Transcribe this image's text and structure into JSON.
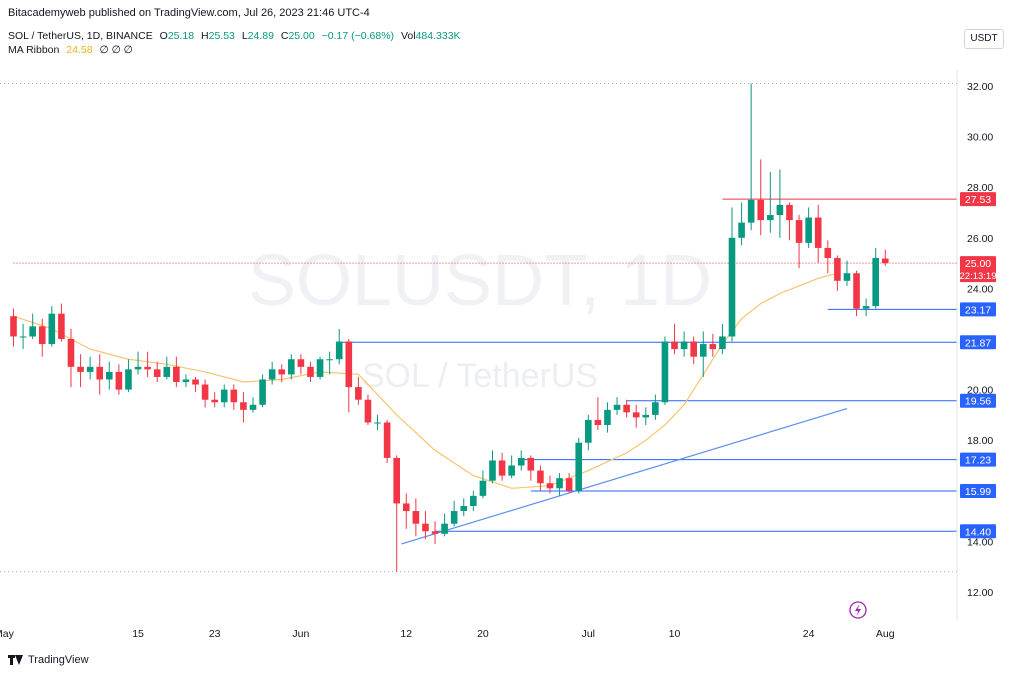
{
  "publish_line": "Bitacademyweb published on TradingView.com, Jul 26, 2023 21:46 UTC-4",
  "legend": {
    "symbol": "SOL / TetherUS, 1D, BINANCE",
    "o_label": "O",
    "o_value": "25.18",
    "h_label": "H",
    "h_value": "25.53",
    "l_label": "L",
    "l_value": "24.89",
    "c_label": "C",
    "c_value": "25.00",
    "change": "−0.17 (−0.68%)",
    "vol_label": "Vol",
    "vol_value": "484.333K",
    "ma_label": "MA Ribbon",
    "ma_value": "24.58",
    "ma_extra": "∅ ∅ ∅"
  },
  "currency_button": "USDT",
  "watermark": {
    "main": "SOLUSDT, 1D",
    "sub": "SOL / TetherUS"
  },
  "brand": "TradingView",
  "colors": {
    "up": "#089981",
    "down": "#f23645",
    "ma": "#f5c56b",
    "hline": "#2962ff",
    "trend": "#5b8def"
  },
  "chart_data": {
    "type": "candlestick",
    "y_ticks": [
      "12.00",
      "14.00",
      "16.00",
      "18.00",
      "20.00",
      "22.00",
      "24.00",
      "26.00",
      "28.00",
      "30.00",
      "32.00"
    ],
    "ylim": [
      11.0,
      33.2
    ],
    "x_ticks": [
      {
        "label": "May",
        "index": -1
      },
      {
        "label": "15",
        "index": 13
      },
      {
        "label": "23",
        "index": 21
      },
      {
        "label": "Jun",
        "index": 30
      },
      {
        "label": "12",
        "index": 41
      },
      {
        "label": "20",
        "index": 49
      },
      {
        "label": "Jul",
        "index": 60
      },
      {
        "label": "10",
        "index": 69
      },
      {
        "label": "24",
        "index": 83
      },
      {
        "label": "Aug",
        "index": 91
      }
    ],
    "candles": [
      [
        22.9,
        22.1,
        23.2,
        21.7
      ],
      [
        22.1,
        22.1,
        22.6,
        21.6
      ],
      [
        22.1,
        22.5,
        23.0,
        22.0
      ],
      [
        22.5,
        21.8,
        22.8,
        21.3
      ],
      [
        21.8,
        23.0,
        23.3,
        21.7
      ],
      [
        23.0,
        22.0,
        23.4,
        21.9
      ],
      [
        22.0,
        20.9,
        22.4,
        20.1
      ],
      [
        20.9,
        20.7,
        21.4,
        20.1
      ],
      [
        20.7,
        20.9,
        21.3,
        20.4
      ],
      [
        20.9,
        20.4,
        21.4,
        19.8
      ],
      [
        20.4,
        20.7,
        21.1,
        20.0
      ],
      [
        20.7,
        20.0,
        21.0,
        19.8
      ],
      [
        20.0,
        20.8,
        21.2,
        19.9
      ],
      [
        20.8,
        20.9,
        21.5,
        20.6
      ],
      [
        20.9,
        20.8,
        21.5,
        20.5
      ],
      [
        20.8,
        20.5,
        21.1,
        20.3
      ],
      [
        20.5,
        20.9,
        21.3,
        20.4
      ],
      [
        20.9,
        20.3,
        21.3,
        20.1
      ],
      [
        20.3,
        20.4,
        20.6,
        20.1
      ],
      [
        20.4,
        20.2,
        20.5,
        19.9
      ],
      [
        20.2,
        19.6,
        20.4,
        19.3
      ],
      [
        19.6,
        19.5,
        19.9,
        19.3
      ],
      [
        19.5,
        20.0,
        20.2,
        19.3
      ],
      [
        20.0,
        19.5,
        20.2,
        19.2
      ],
      [
        19.5,
        19.2,
        19.9,
        18.7
      ],
      [
        19.2,
        19.4,
        19.7,
        19.1
      ],
      [
        19.4,
        20.4,
        20.6,
        19.3
      ],
      [
        20.4,
        20.8,
        21.1,
        20.2
      ],
      [
        20.8,
        20.6,
        21.0,
        20.3
      ],
      [
        20.6,
        21.2,
        21.4,
        20.4
      ],
      [
        21.2,
        20.9,
        21.4,
        20.6
      ],
      [
        20.9,
        20.5,
        21.1,
        20.3
      ],
      [
        20.5,
        21.2,
        21.3,
        20.4
      ],
      [
        21.2,
        21.2,
        21.5,
        20.6
      ],
      [
        21.2,
        21.9,
        22.4,
        21.0
      ],
      [
        21.9,
        20.1,
        22.0,
        19.1
      ],
      [
        20.1,
        19.6,
        20.5,
        19.4
      ],
      [
        19.6,
        18.7,
        19.8,
        18.6
      ],
      [
        18.7,
        18.7,
        19.0,
        18.4
      ],
      [
        18.7,
        17.3,
        18.8,
        17.1
      ],
      [
        17.3,
        15.5,
        17.4,
        12.8
      ],
      [
        15.5,
        15.2,
        15.9,
        14.5
      ],
      [
        15.2,
        14.7,
        15.7,
        14.2
      ],
      [
        14.7,
        14.4,
        15.2,
        14.1
      ],
      [
        14.4,
        14.3,
        14.8,
        13.9
      ],
      [
        14.3,
        14.7,
        15.1,
        14.2
      ],
      [
        14.7,
        15.2,
        15.6,
        14.6
      ],
      [
        15.2,
        15.4,
        15.7,
        15.0
      ],
      [
        15.4,
        15.8,
        16.0,
        15.2
      ],
      [
        15.8,
        16.4,
        16.8,
        15.7
      ],
      [
        16.4,
        17.2,
        17.6,
        16.3
      ],
      [
        17.2,
        16.6,
        17.5,
        16.4
      ],
      [
        16.6,
        17.0,
        17.4,
        16.5
      ],
      [
        17.0,
        17.3,
        17.6,
        16.8
      ],
      [
        17.3,
        16.8,
        17.4,
        16.4
      ],
      [
        16.8,
        16.3,
        17.0,
        16.0
      ],
      [
        16.3,
        16.1,
        16.6,
        15.9
      ],
      [
        16.1,
        16.5,
        16.7,
        15.8
      ],
      [
        16.5,
        16.0,
        16.7,
        15.9
      ],
      [
        16.0,
        17.9,
        18.1,
        15.9
      ],
      [
        17.9,
        18.8,
        19.0,
        17.6
      ],
      [
        18.8,
        18.6,
        19.7,
        18.4
      ],
      [
        18.6,
        19.2,
        19.5,
        18.3
      ],
      [
        19.2,
        19.4,
        19.7,
        19.0
      ],
      [
        19.4,
        19.1,
        19.6,
        18.9
      ],
      [
        19.1,
        18.9,
        19.4,
        18.5
      ],
      [
        18.9,
        19.0,
        19.3,
        18.6
      ],
      [
        19.0,
        19.5,
        19.8,
        18.8
      ],
      [
        19.5,
        21.9,
        22.1,
        19.4
      ],
      [
        21.9,
        21.6,
        22.6,
        21.4
      ],
      [
        21.6,
        21.9,
        22.3,
        21.3
      ],
      [
        21.9,
        21.3,
        22.1,
        21.0
      ],
      [
        21.3,
        21.8,
        22.3,
        20.5
      ],
      [
        21.8,
        21.6,
        22.2,
        21.3
      ],
      [
        21.6,
        22.1,
        22.6,
        21.4
      ],
      [
        22.1,
        26.0,
        27.2,
        21.9
      ],
      [
        26.0,
        26.6,
        27.4,
        25.7
      ],
      [
        26.6,
        27.5,
        32.1,
        26.3
      ],
      [
        27.5,
        26.7,
        29.1,
        26.1
      ],
      [
        26.7,
        26.9,
        28.6,
        26.2
      ],
      [
        26.9,
        27.3,
        28.7,
        26.0
      ],
      [
        27.3,
        26.7,
        27.4,
        25.9
      ],
      [
        26.7,
        25.8,
        26.9,
        24.8
      ],
      [
        25.8,
        26.8,
        27.2,
        25.6
      ],
      [
        26.8,
        25.6,
        27.3,
        25.0
      ],
      [
        25.6,
        25.2,
        25.9,
        24.6
      ],
      [
        25.2,
        24.3,
        25.3,
        23.9
      ],
      [
        24.3,
        24.6,
        25.1,
        24.1
      ],
      [
        24.6,
        23.2,
        24.7,
        22.9
      ],
      [
        23.2,
        23.3,
        23.6,
        22.9
      ],
      [
        23.3,
        25.2,
        25.6,
        23.2
      ],
      [
        25.18,
        25.0,
        25.53,
        24.89
      ]
    ],
    "ma_line": [
      [
        0,
        22.9
      ],
      [
        4,
        22.4
      ],
      [
        8,
        21.6
      ],
      [
        12,
        21.2
      ],
      [
        16,
        21.0
      ],
      [
        20,
        20.7
      ],
      [
        24,
        20.3
      ],
      [
        28,
        20.4
      ],
      [
        32,
        20.7
      ],
      [
        36,
        20.6
      ],
      [
        40,
        19.0
      ],
      [
        44,
        17.6
      ],
      [
        48,
        16.6
      ],
      [
        52,
        16.1
      ],
      [
        56,
        16.2
      ],
      [
        60,
        16.8
      ],
      [
        64,
        17.5
      ],
      [
        66,
        18.0
      ],
      [
        68,
        18.6
      ],
      [
        70,
        19.4
      ],
      [
        72,
        20.6
      ],
      [
        74,
        21.8
      ],
      [
        76,
        22.8
      ],
      [
        78,
        23.4
      ],
      [
        80,
        23.8
      ],
      [
        82,
        24.1
      ],
      [
        84,
        24.4
      ],
      [
        86,
        24.6
      ]
    ],
    "price_levels": [
      {
        "value": 27.53,
        "label": "27.53",
        "color": "#f23645",
        "from_index": 74
      },
      {
        "value": 25.0,
        "label": "25.00",
        "sublabel": "22:13:19",
        "color": "#f23645",
        "from_index": 0,
        "dotted": true
      },
      {
        "value": 23.17,
        "label": "23.17",
        "color": "#2962ff",
        "from_index": 85
      },
      {
        "value": 21.87,
        "label": "21.87",
        "color": "#2962ff",
        "from_index": 34
      },
      {
        "value": 19.56,
        "label": "19.56",
        "color": "#2962ff",
        "from_index": 64
      },
      {
        "value": 17.23,
        "label": "17.23",
        "color": "#2962ff",
        "from_index": 53
      },
      {
        "value": 15.99,
        "label": "15.99",
        "color": "#2962ff",
        "from_index": 54
      },
      {
        "value": 14.4,
        "label": "14.40",
        "color": "#2962ff",
        "from_index": 44
      }
    ],
    "trendlines": [
      {
        "from": [
          40.5,
          13.9
        ],
        "to": [
          87,
          19.25
        ]
      }
    ],
    "dotted_extremes": [
      32.1,
      12.8
    ]
  }
}
